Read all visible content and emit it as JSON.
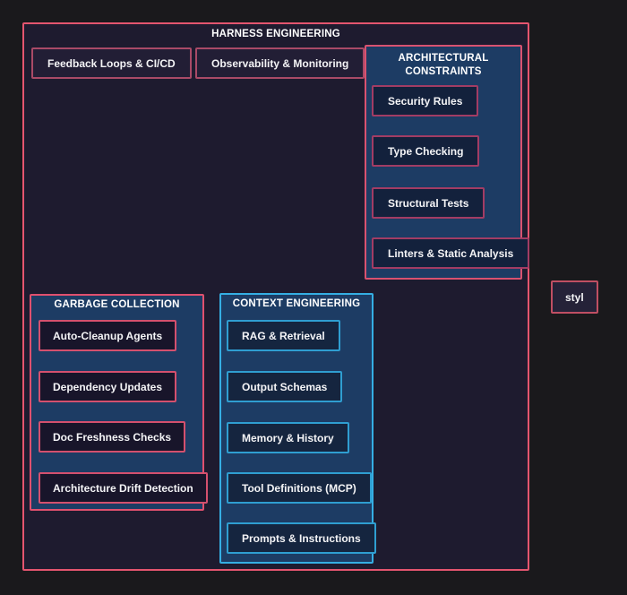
{
  "diagram": {
    "title": "HARNESS ENGINEERING"
  },
  "top_items": [
    "Feedback Loops & CI/CD",
    "Observability & Monitoring"
  ],
  "architectural": {
    "title": "ARCHITECTURAL CONSTRAINTS",
    "items": [
      "Security Rules",
      "Type Checking",
      "Structural Tests",
      "Linters & Static Analysis"
    ]
  },
  "garbage": {
    "title": "GARBAGE COLLECTION",
    "items": [
      "Auto-Cleanup Agents",
      "Dependency Updates",
      "Doc Freshness Checks",
      "Architecture Drift Detection"
    ]
  },
  "context": {
    "title": "CONTEXT ENGINEERING",
    "items": [
      "RAG & Retrieval",
      "Output Schemas",
      "Memory & History",
      "Tool Definitions (MCP)",
      "Prompts & Instructions"
    ]
  },
  "clipped_box": {
    "label": "styl"
  },
  "colors": {
    "page_background": "#1a191c",
    "harness_fill": "#1e1b2f",
    "pink_border": "#e4556f",
    "muted_pink_border": "#a94a67",
    "navy_group_fill": "#1d3c64",
    "navy_item_fill": "#13213c",
    "dark_item_fill": "#18152a",
    "cyan_border": "#35aee3",
    "text": "#ffffff"
  }
}
